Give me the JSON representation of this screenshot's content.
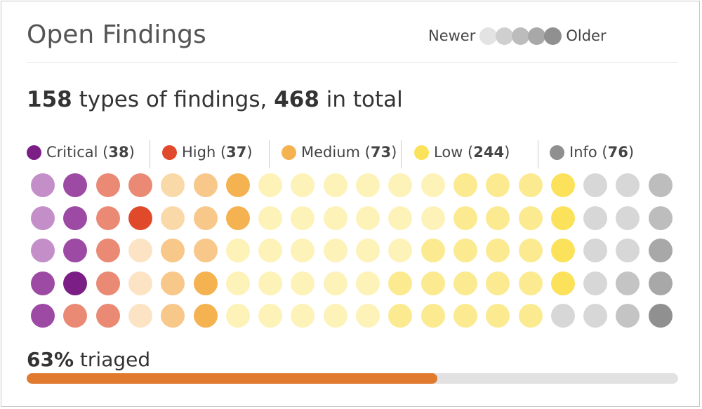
{
  "card": {
    "title": "Open Findings",
    "age_legend": {
      "newer_label": "Newer",
      "older_label": "Older",
      "shades": [
        "#e3e3e3",
        "#cfcfcf",
        "#bcbcbc",
        "#a8a8a8",
        "#909090"
      ]
    },
    "summary": {
      "types_count": "158",
      "types_text": " types of findings, ",
      "total_count": "468",
      "total_text": " in total"
    },
    "severities": [
      {
        "name": "Critical",
        "count": "38",
        "color": "#7b1f86"
      },
      {
        "name": "High",
        "count": "37",
        "color": "#e04a2a"
      },
      {
        "name": "Medium",
        "count": "73",
        "color": "#f4b350"
      },
      {
        "name": "Low",
        "count": "244",
        "color": "#fbe25a"
      },
      {
        "name": "Info",
        "count": "76",
        "color": "#8f8f8f"
      }
    ],
    "grid_colors": [
      [
        "#c48fc9",
        "#9c4aa3",
        "#ea8a74",
        "#ea8a74",
        "#f9d9a8",
        "#f7c88a",
        "#f4b350",
        "#fdf2b8",
        "#fdf2b8",
        "#fdf2b8",
        "#fdf2b8",
        "#fdf2b8",
        "#fdf2b8",
        "#fcea90",
        "#fcea90",
        "#fcea90",
        "#fbe25a",
        "#d7d7d7",
        "#d7d7d7",
        "#bdbdbd"
      ],
      [
        "#c48fc9",
        "#9c4aa3",
        "#ea8a74",
        "#e04a2a",
        "#f9d9a8",
        "#f7c88a",
        "#f4b350",
        "#fdf2b8",
        "#fdf2b8",
        "#fdf2b8",
        "#fdf2b8",
        "#fdf2b8",
        "#fdf2b8",
        "#fcea90",
        "#fcea90",
        "#fcea90",
        "#fbe25a",
        "#d7d7d7",
        "#d7d7d7",
        "#bdbdbd"
      ],
      [
        "#c48fc9",
        "#9c4aa3",
        "#ea8a74",
        "#fce3c4",
        "#f7c88a",
        "#f7c88a",
        "#fdf2b8",
        "#fdf2b8",
        "#fdf2b8",
        "#fdf2b8",
        "#fdf2b8",
        "#fdf2b8",
        "#fcea90",
        "#fcea90",
        "#fcea90",
        "#fcea90",
        "#fbe25a",
        "#d7d7d7",
        "#d7d7d7",
        "#a8a8a8"
      ],
      [
        "#9c4aa3",
        "#7b1f86",
        "#ea8a74",
        "#fce3c4",
        "#f7c88a",
        "#f4b350",
        "#fdf2b8",
        "#fdf2b8",
        "#fdf2b8",
        "#fdf2b8",
        "#fdf2b8",
        "#fcea90",
        "#fcea90",
        "#fcea90",
        "#fcea90",
        "#fcea90",
        "#fbe25a",
        "#d7d7d7",
        "#c4c4c4",
        "#a8a8a8"
      ],
      [
        "#9c4aa3",
        "#ea8a74",
        "#ea8a74",
        "#fce3c4",
        "#f7c88a",
        "#f4b350",
        "#fdf2b8",
        "#fdf2b8",
        "#fdf2b8",
        "#fdf2b8",
        "#fdf2b8",
        "#fcea90",
        "#fcea90",
        "#fcea90",
        "#fcea90",
        "#fcea90",
        "#d7d7d7",
        "#d7d7d7",
        "#c4c4c4",
        "#909090"
      ]
    ],
    "triage": {
      "percent_label": "63%",
      "suffix_text": " triaged",
      "fraction": 0.63,
      "bar_color": "#e07a2f"
    }
  }
}
